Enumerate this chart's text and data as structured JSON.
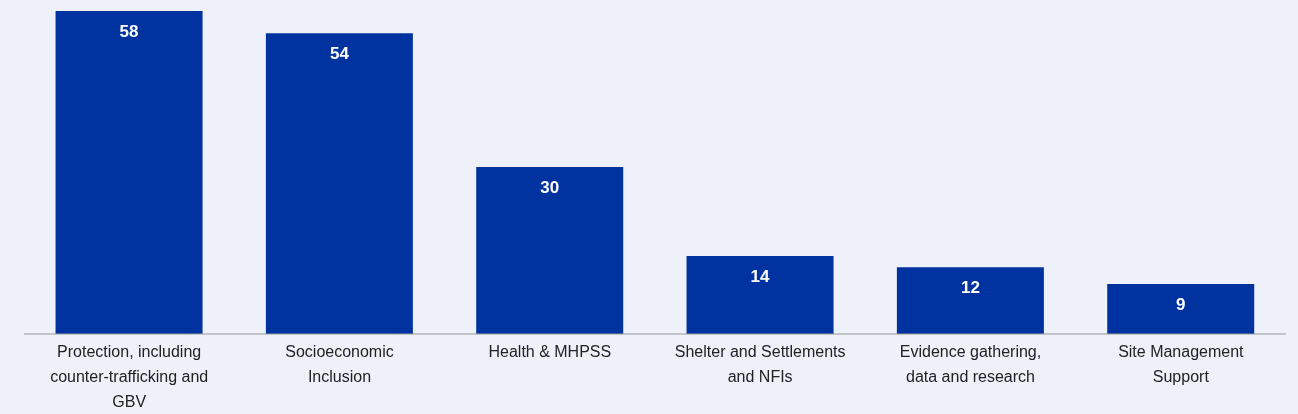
{
  "chart_data": {
    "type": "bar",
    "categories": [
      "Protection, including counter-trafficking and GBV",
      "Socioeconomic Inclusion",
      "Health & MHPSS",
      "Shelter and Settlements and NFIs",
      "Evidence gathering, data and research",
      "Site Management Support"
    ],
    "values": [
      58,
      54,
      30,
      14,
      12,
      9
    ],
    "color": "#0033a0",
    "data_labels": true
  }
}
